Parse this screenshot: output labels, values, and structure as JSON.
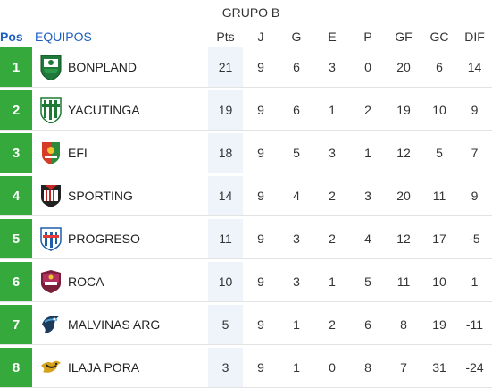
{
  "group_title": "GRUPO B",
  "headers": {
    "pos": "Pos",
    "team": "EQUIPOS",
    "pts": "Pts",
    "j": "J",
    "g": "G",
    "e": "E",
    "p": "P",
    "gf": "GF",
    "gc": "GC",
    "dif": "DIF"
  },
  "colors": {
    "position_badge": "#36a93c",
    "header_link": "#1f5fbf",
    "column_shade": "#e9f2f9"
  },
  "rows": [
    {
      "pos": "1",
      "team": "BONPLAND",
      "logo": "bonpland-crest-icon",
      "pts": "21",
      "j": "9",
      "g": "6",
      "e": "3",
      "p": "0",
      "gf": "20",
      "gc": "6",
      "dif": "14"
    },
    {
      "pos": "2",
      "team": "YACUTINGA",
      "logo": "yacutinga-crest-icon",
      "pts": "19",
      "j": "9",
      "g": "6",
      "e": "1",
      "p": "2",
      "gf": "19",
      "gc": "10",
      "dif": "9"
    },
    {
      "pos": "3",
      "team": "EFI",
      "logo": "efi-crest-icon",
      "pts": "18",
      "j": "9",
      "g": "5",
      "e": "3",
      "p": "1",
      "gf": "12",
      "gc": "5",
      "dif": "7"
    },
    {
      "pos": "4",
      "team": "SPORTING",
      "logo": "sporting-crest-icon",
      "pts": "14",
      "j": "9",
      "g": "4",
      "e": "2",
      "p": "3",
      "gf": "20",
      "gc": "11",
      "dif": "9"
    },
    {
      "pos": "5",
      "team": "PROGRESO",
      "logo": "progreso-crest-icon",
      "pts": "11",
      "j": "9",
      "g": "3",
      "e": "2",
      "p": "4",
      "gf": "12",
      "gc": "17",
      "dif": "-5"
    },
    {
      "pos": "6",
      "team": "ROCA",
      "logo": "roca-crest-icon",
      "pts": "10",
      "j": "9",
      "g": "3",
      "e": "1",
      "p": "5",
      "gf": "11",
      "gc": "10",
      "dif": "1"
    },
    {
      "pos": "7",
      "team": "MALVINAS ARG",
      "logo": "malvinas-arg-crest-icon",
      "pts": "5",
      "j": "9",
      "g": "1",
      "e": "2",
      "p": "6",
      "gf": "8",
      "gc": "19",
      "dif": "-11"
    },
    {
      "pos": "8",
      "team": "ILAJA PORA",
      "logo": "ilaja-pora-crest-icon",
      "pts": "3",
      "j": "9",
      "g": "1",
      "e": "0",
      "p": "8",
      "gf": "7",
      "gc": "31",
      "dif": "-24"
    }
  ]
}
